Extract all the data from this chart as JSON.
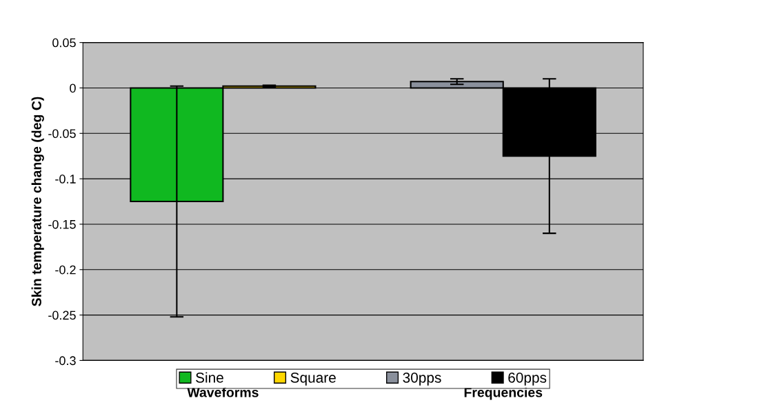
{
  "chart_data": {
    "type": "bar",
    "ylabel": "Skin temperature change (deg C)",
    "categories": [
      "Waveforms",
      "Frequencies"
    ],
    "series": [
      {
        "name": "Sine",
        "color": "#10b820",
        "values": [
          -0.125,
          null
        ],
        "errors": [
          0.127,
          null
        ]
      },
      {
        "name": "Square",
        "color": "#ffd700",
        "values": [
          0.002,
          null
        ],
        "errors": [
          0.001,
          null
        ]
      },
      {
        "name": "30pps",
        "color": "#8a909c",
        "values": [
          null,
          0.007
        ],
        "errors": [
          null,
          0.003
        ]
      },
      {
        "name": "60pps",
        "color": "#000000",
        "values": [
          null,
          -0.075
        ],
        "errors": [
          null,
          0.085
        ]
      }
    ],
    "ylim": [
      -0.3,
      0.05
    ],
    "yticks": [
      -0.3,
      -0.25,
      -0.2,
      -0.15,
      -0.1,
      -0.05,
      0,
      0.05
    ],
    "grid": "y",
    "legend": "bottom"
  }
}
